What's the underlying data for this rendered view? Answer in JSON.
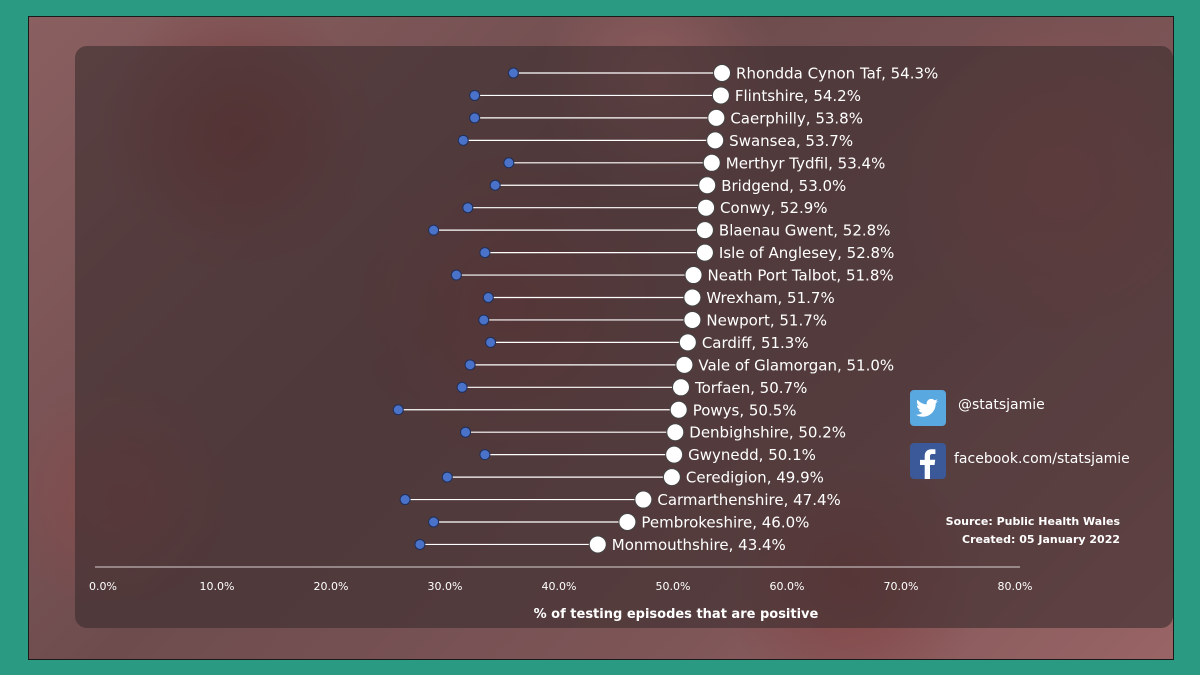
{
  "social": {
    "twitter": "@statsjamie",
    "facebook": "facebook.com/statsjamie"
  },
  "credits": {
    "source": "Source: Public Health Wales",
    "created": "Created: 05 January 2022"
  },
  "colors": {
    "background": "#2a9a82",
    "start_marker": "#4a72c8",
    "end_marker": "#ffffff",
    "connector": "#ffffff"
  },
  "chart_data": {
    "type": "dumbbell",
    "title": "",
    "xlabel": "% of testing episodes that are positive",
    "ylabel": "",
    "xlim": [
      0,
      80
    ],
    "x_ticks": [
      "0.0%",
      "10.0%",
      "20.0%",
      "30.0%",
      "40.0%",
      "50.0%",
      "60.0%",
      "70.0%",
      "80.0%"
    ],
    "grid": false,
    "categories": [
      "Rhondda Cynon Taf",
      "Flintshire",
      "Caerphilly",
      "Swansea",
      "Merthyr Tydfil",
      "Bridgend",
      "Conwy",
      "Blaenau Gwent",
      "Isle of Anglesey",
      "Neath Port Talbot",
      "Wrexham",
      "Newport",
      "Cardiff",
      "Vale of Glamorgan",
      "Torfaen",
      "Powys",
      "Denbighshire",
      "Gwynedd",
      "Ceredigion",
      "Carmarthenshire",
      "Pembrokeshire",
      "Monmouthshire"
    ],
    "labels": [
      "Rhondda Cynon Taf, 54.3%",
      "Flintshire, 54.2%",
      "Caerphilly, 53.8%",
      "Swansea, 53.7%",
      "Merthyr Tydfil, 53.4%",
      "Bridgend, 53.0%",
      "Conwy, 52.9%",
      "Blaenau Gwent, 52.8%",
      "Isle of Anglesey, 52.8%",
      "Neath Port Talbot, 51.8%",
      "Wrexham, 51.7%",
      "Newport, 51.7%",
      "Cardiff, 51.3%",
      "Vale of Glamorgan, 51.0%",
      "Torfaen, 50.7%",
      "Powys, 50.5%",
      "Denbighshire, 50.2%",
      "Gwynedd, 50.1%",
      "Ceredigion, 49.9%",
      "Carmarthenshire, 47.4%",
      "Pembrokeshire, 46.0%",
      "Monmouthshire, 43.4%"
    ],
    "series": [
      {
        "values": [
          36.0,
          32.6,
          32.6,
          31.6,
          35.6,
          34.4,
          32.0,
          29.0,
          33.5,
          31.0,
          33.8,
          33.4,
          34.0,
          32.2,
          31.5,
          25.9,
          31.8,
          33.5,
          30.2,
          26.5,
          29.0,
          27.8
        ]
      },
      {
        "values": [
          54.3,
          54.2,
          53.8,
          53.7,
          53.4,
          53.0,
          52.9,
          52.8,
          52.8,
          51.8,
          51.7,
          51.7,
          51.3,
          51.0,
          50.7,
          50.5,
          50.2,
          50.1,
          49.9,
          47.4,
          46.0,
          43.4
        ]
      }
    ]
  }
}
